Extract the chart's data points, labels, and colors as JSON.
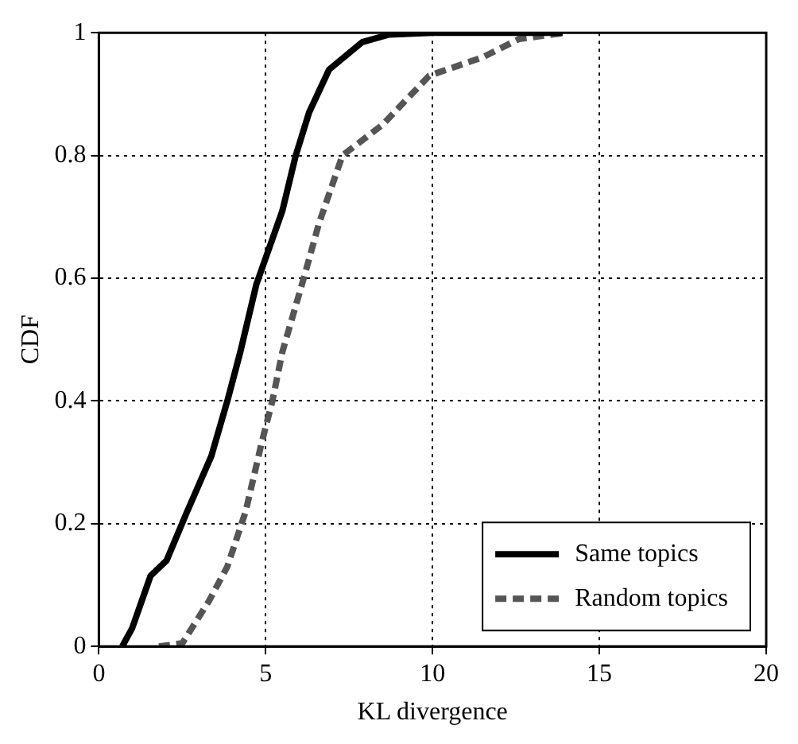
{
  "chart_data": {
    "type": "line",
    "xlabel": "KL divergence",
    "ylabel": "CDF",
    "xlim": [
      0,
      20
    ],
    "ylim": [
      0,
      1
    ],
    "xticks": [
      0,
      5,
      10,
      15,
      20
    ],
    "yticks": [
      0,
      0.2,
      0.4,
      0.6,
      0.8,
      1
    ],
    "grid": true,
    "legend": "bottom right",
    "marker": "none",
    "series": [
      {
        "name": "Same topics",
        "color": "#000000",
        "line_style": "solid",
        "x": [
          0.7,
          1.0,
          1.55,
          2.03,
          2.6,
          3.37,
          3.85,
          4.24,
          4.72,
          5.5,
          5.9,
          6.3,
          6.9,
          7.9,
          8.7,
          10,
          13.9
        ],
        "values": [
          0,
          0.03,
          0.115,
          0.14,
          0.214,
          0.31,
          0.4,
          0.48,
          0.59,
          0.71,
          0.8,
          0.87,
          0.94,
          0.985,
          0.997,
          1,
          1
        ]
      },
      {
        "name": "Random topics",
        "color": "#555555",
        "line_style": "dashed",
        "x": [
          1.8,
          2.5,
          3.3,
          3.85,
          4.4,
          4.87,
          5.2,
          5.5,
          6.14,
          6.6,
          7.3,
          8.5,
          9.9,
          11.5,
          12.6,
          14.0
        ],
        "values": [
          0,
          0.005,
          0.074,
          0.13,
          0.22,
          0.33,
          0.4,
          0.48,
          0.6,
          0.69,
          0.8,
          0.85,
          0.93,
          0.96,
          0.99,
          1
        ]
      }
    ]
  }
}
